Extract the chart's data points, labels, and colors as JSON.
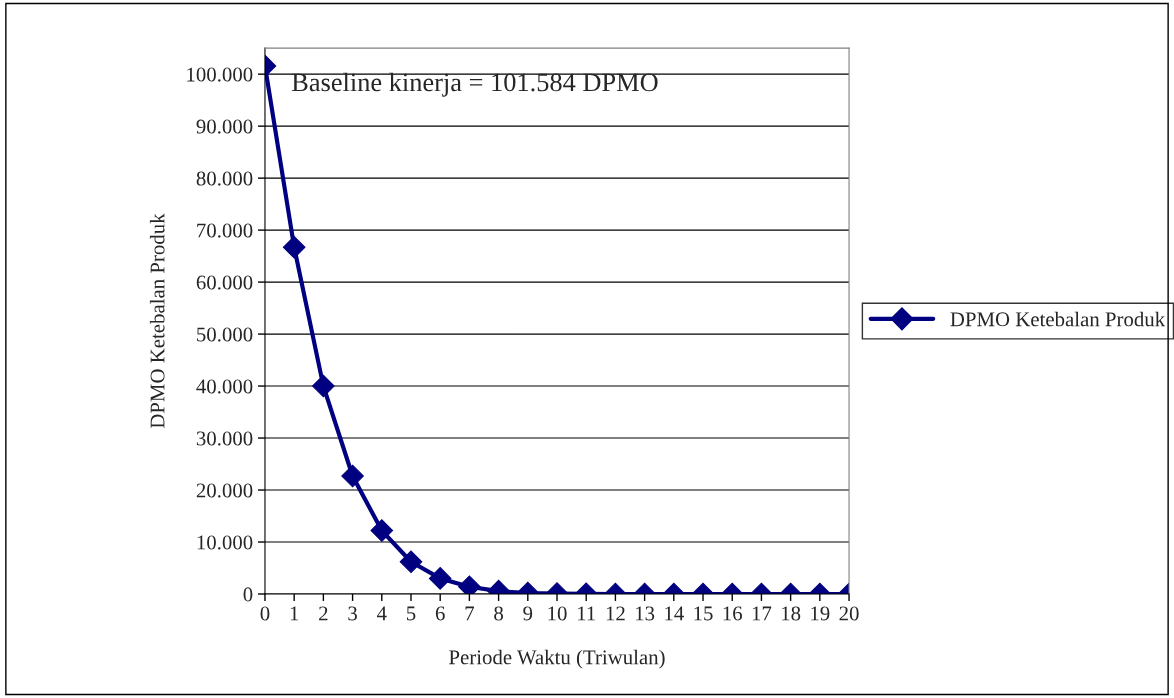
{
  "chart_data": {
    "type": "line",
    "xlabel": "Periode Waktu (Triwulan)",
    "ylabel": "DPMO Ketebalan Produk",
    "categories": [
      "0",
      "1",
      "2",
      "3",
      "4",
      "5",
      "6",
      "7",
      "8",
      "9",
      "10",
      "11",
      "12",
      "13",
      "14",
      "15",
      "16",
      "17",
      "18",
      "19",
      "20"
    ],
    "series": [
      {
        "name": "DPMO Ketebalan Produk",
        "color": "#000080",
        "values": [
          101584,
          66700,
          40000,
          22700,
          12200,
          6200,
          3000,
          1400,
          550,
          200,
          100,
          50,
          0,
          0,
          0,
          0,
          0,
          0,
          0,
          0,
          0
        ]
      }
    ],
    "ylim": [
      0,
      105000
    ],
    "yticks": [
      0,
      {
        "value": 10000,
        "label": "10.000"
      },
      {
        "value": 20000,
        "label": "20.000"
      },
      {
        "value": 30000,
        "label": "30.000"
      },
      {
        "value": 40000,
        "label": "40.000"
      },
      {
        "value": 50000,
        "label": "50.000"
      },
      {
        "value": 60000,
        "label": "60.000"
      },
      {
        "value": 70000,
        "label": "70.000"
      },
      {
        "value": 80000,
        "label": "80.000"
      },
      {
        "value": 90000,
        "label": "90.000"
      },
      {
        "value": 100000,
        "label": "100.000"
      }
    ],
    "grid": "y",
    "legend": "right",
    "marker": "diamond",
    "line_style": "solid",
    "annotations": [
      "Baseline kinerja = 101.584 DPMO"
    ]
  }
}
